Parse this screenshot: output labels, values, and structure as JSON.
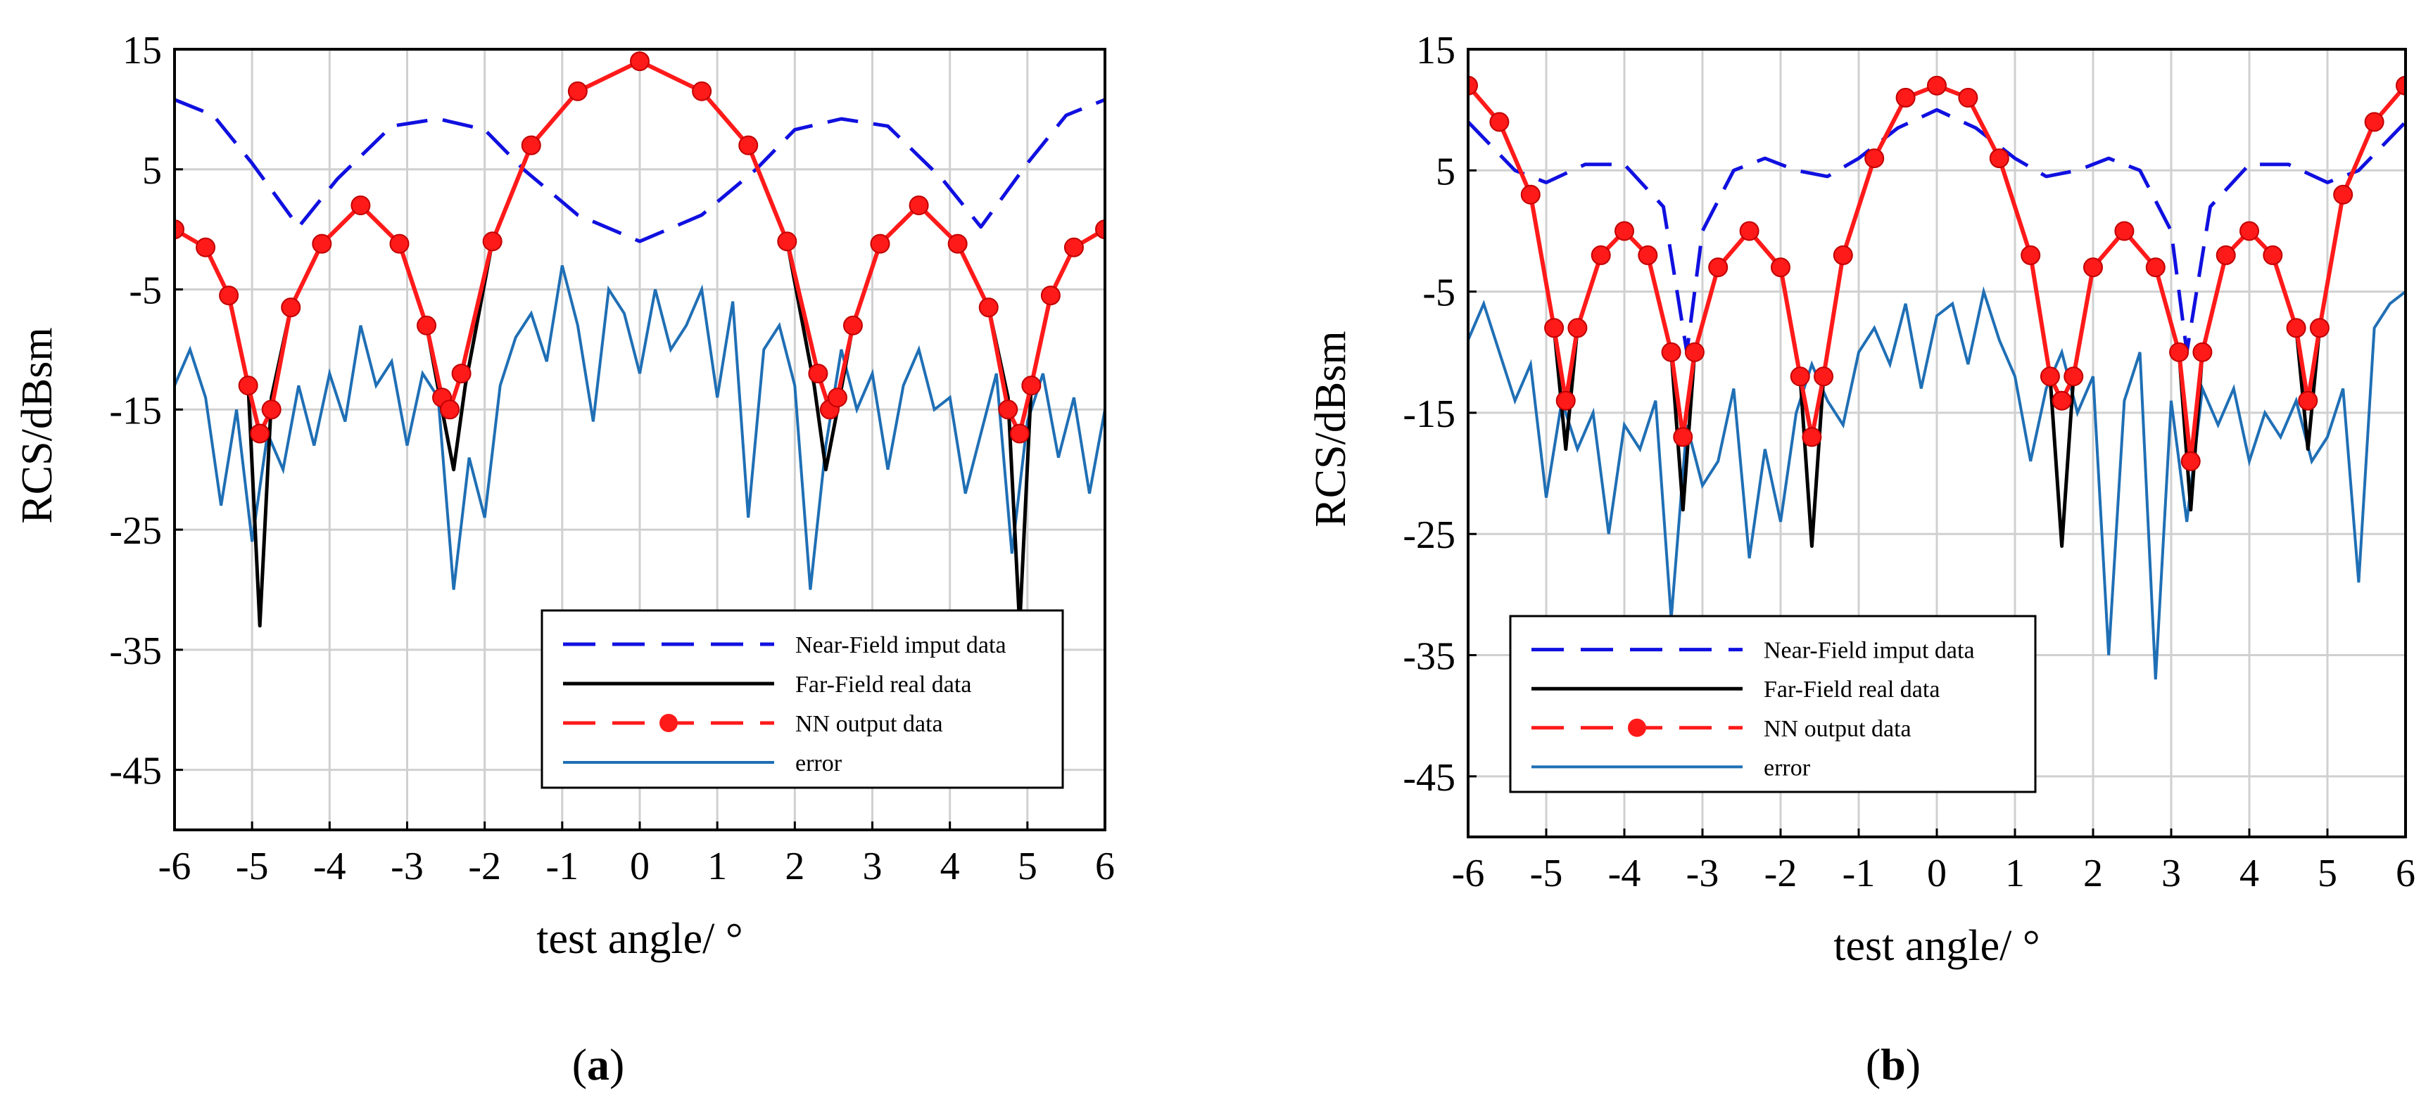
{
  "colors": {
    "near_field": "#1010e0",
    "far_field": "#000000",
    "nn_output": "#ff1a1a",
    "error": "#1f6fb5",
    "grid": "#d0d0d0"
  },
  "chart_data": [
    {
      "type": "line",
      "panel": "a",
      "caption_letter": "a",
      "xlabel": "test angle/ °",
      "ylabel": "RCS/dBsm",
      "xlim": [
        -6,
        6
      ],
      "ylim": [
        -50,
        15
      ],
      "xticks": [
        "-6",
        "-5",
        "-4",
        "-3",
        "-2",
        "-1",
        "0",
        "1",
        "2",
        "3",
        "4",
        "5",
        "6"
      ],
      "yticks": [
        "15",
        "5",
        "-5",
        "-15",
        "-25",
        "-35",
        "-45"
      ],
      "legend_position": "bottom-right",
      "legend": [
        "Near-Field imput data",
        "Far-Field real data",
        "NN output data",
        "error"
      ],
      "model": {
        "near_period": 8.8,
        "far_period": 2.45,
        "near_min": -1,
        "near_max": 9.2,
        "far_peak": 14,
        "far_side": 2,
        "far_edge": 0,
        "near_edge": 10.8
      },
      "series": [
        {
          "name": "Near-Field imput data",
          "x": [
            -6,
            -5.5,
            -5,
            -4.4,
            -3.9,
            -3.2,
            -2.6,
            -2,
            -1.5,
            -0.8,
            0,
            0.8,
            1.5,
            2,
            2.6,
            3.2,
            3.9,
            4.4,
            5,
            5.5,
            6
          ],
          "y": [
            10.8,
            9.5,
            5.5,
            0.2,
            4.2,
            8.6,
            9.2,
            8.3,
            5,
            1.2,
            -1,
            1.2,
            5,
            8.3,
            9.2,
            8.6,
            4.2,
            0.2,
            5.5,
            9.5,
            10.8
          ]
        },
        {
          "name": "Far-Field real data",
          "x": [
            -6,
            -5.6,
            -5.3,
            -5.05,
            -4.9,
            -4.75,
            -4.5,
            -4.1,
            -3.6,
            -3.1,
            -2.75,
            -2.55,
            -2.4,
            -2.25,
            -1.9,
            -1.4,
            -0.8,
            0,
            0.8,
            1.4,
            1.9,
            2.25,
            2.4,
            2.55,
            2.75,
            3.1,
            3.6,
            4.1,
            4.5,
            4.75,
            4.9,
            5.05,
            5.3,
            5.6,
            6
          ],
          "y": [
            0,
            -1.5,
            -5.5,
            -13,
            -33,
            -14,
            -6.5,
            -1.2,
            2,
            -1.2,
            -8,
            -15,
            -20,
            -13,
            -1,
            7,
            11.5,
            14,
            11.5,
            7,
            -1,
            -13,
            -20,
            -15,
            -8,
            -1.2,
            2,
            -1.2,
            -6.5,
            -14,
            -33,
            -13,
            -5.5,
            -1.5,
            0
          ]
        },
        {
          "name": "NN output data",
          "x": [
            -6,
            -5.6,
            -5.3,
            -5.05,
            -4.9,
            -4.75,
            -4.5,
            -4.1,
            -3.6,
            -3.1,
            -2.75,
            -2.55,
            -2.45,
            -2.3,
            -1.9,
            -1.4,
            -0.8,
            0,
            0.8,
            1.4,
            1.9,
            2.3,
            2.45,
            2.55,
            2.75,
            3.1,
            3.6,
            4.1,
            4.5,
            4.75,
            4.9,
            5.05,
            5.3,
            5.6,
            6
          ],
          "y": [
            0,
            -1.5,
            -5.5,
            -13,
            -17,
            -15,
            -6.5,
            -1.2,
            2,
            -1.2,
            -8,
            -14,
            -15,
            -12,
            -1,
            7,
            11.5,
            14,
            11.5,
            7,
            -1,
            -12,
            -15,
            -14,
            -8,
            -1.2,
            2,
            -1.2,
            -6.5,
            -15,
            -17,
            -13,
            -5.5,
            -1.5,
            0
          ]
        },
        {
          "name": "error",
          "x": [
            -6,
            -5.8,
            -5.6,
            -5.4,
            -5.2,
            -5,
            -4.8,
            -4.6,
            -4.4,
            -4.2,
            -4,
            -3.8,
            -3.6,
            -3.4,
            -3.2,
            -3,
            -2.8,
            -2.6,
            -2.4,
            -2.2,
            -2,
            -1.8,
            -1.6,
            -1.4,
            -1.2,
            -1,
            -0.8,
            -0.6,
            -0.4,
            -0.2,
            0,
            0.2,
            0.4,
            0.6,
            0.8,
            1,
            1.2,
            1.4,
            1.6,
            1.8,
            2,
            2.2,
            2.4,
            2.6,
            2.8,
            3,
            3.2,
            3.4,
            3.6,
            3.8,
            4,
            4.2,
            4.4,
            4.6,
            4.8,
            5,
            5.2,
            5.4,
            5.6,
            5.8,
            6
          ],
          "y": [
            -13,
            -10,
            -14,
            -23,
            -15,
            -26,
            -17,
            -20,
            -13,
            -18,
            -12,
            -16,
            -8,
            -13,
            -11,
            -18,
            -12,
            -14,
            -30,
            -19,
            -24,
            -13,
            -9,
            -7,
            -11,
            -3,
            -8,
            -16,
            -5,
            -7,
            -12,
            -5,
            -10,
            -8,
            -5,
            -14,
            -6,
            -24,
            -10,
            -8,
            -13,
            -30,
            -18,
            -10,
            -15,
            -12,
            -20,
            -13,
            -10,
            -15,
            -14,
            -22,
            -17,
            -12,
            -27,
            -16,
            -12,
            -19,
            -14,
            -22,
            -15
          ]
        }
      ]
    },
    {
      "type": "line",
      "panel": "b",
      "caption_letter": "b",
      "xlabel": "test angle/ °",
      "ylabel": "RCS/dBsm",
      "xlim": [
        -6,
        6
      ],
      "ylim": [
        -50,
        15
      ],
      "xticks": [
        "-6",
        "-5",
        "-4",
        "-3",
        "-2",
        "-1",
        "0",
        "1",
        "2",
        "3",
        "4",
        "5",
        "6"
      ],
      "yticks": [
        "15",
        "5",
        "-5",
        "-15",
        "-25",
        "-35",
        "-45"
      ],
      "legend_position": "bottom-right",
      "legend": [
        "Near-Field imput data",
        "Far-Field real data",
        "NN output data",
        "error"
      ],
      "series": [
        {
          "name": "Near-Field imput data",
          "x": [
            -6,
            -5.4,
            -5,
            -4.5,
            -4,
            -3.5,
            -3.2,
            -3,
            -2.6,
            -2.2,
            -1.8,
            -1.4,
            -1,
            -0.5,
            0,
            0.5,
            1,
            1.4,
            1.8,
            2.2,
            2.6,
            3,
            3.2,
            3.5,
            4,
            4.5,
            5,
            5.4,
            6
          ],
          "y": [
            9,
            5,
            4,
            5.5,
            5.5,
            2,
            -10,
            0,
            5,
            6,
            5,
            4.5,
            6,
            8.5,
            10,
            8.5,
            6,
            4.5,
            5,
            6,
            5,
            0,
            -10,
            2,
            5.5,
            5.5,
            4,
            5,
            9
          ]
        },
        {
          "name": "Far-Field real data",
          "x": [
            -6,
            -5.6,
            -5.2,
            -4.9,
            -4.75,
            -4.6,
            -4.3,
            -4,
            -3.7,
            -3.4,
            -3.25,
            -3.1,
            -2.8,
            -2.4,
            -2,
            -1.75,
            -1.6,
            -1.45,
            -1.2,
            -0.8,
            -0.4,
            0,
            0.4,
            0.8,
            1.2,
            1.45,
            1.6,
            1.75,
            2,
            2.4,
            2.8,
            3.1,
            3.25,
            3.4,
            3.7,
            4,
            4.3,
            4.6,
            4.75,
            4.9,
            5.2,
            5.6,
            6
          ],
          "y": [
            12,
            9,
            3,
            -8,
            -18,
            -8,
            -2,
            0,
            -2,
            -10,
            -23,
            -10,
            -3,
            0,
            -3,
            -12,
            -26,
            -12,
            -2,
            6,
            11,
            12,
            11,
            6,
            -2,
            -12,
            -26,
            -12,
            -3,
            0,
            -3,
            -10,
            -23,
            -10,
            -2,
            0,
            -2,
            -8,
            -18,
            -8,
            3,
            9,
            12
          ]
        },
        {
          "name": "NN output data",
          "x": [
            -6,
            -5.6,
            -5.2,
            -4.9,
            -4.75,
            -4.6,
            -4.3,
            -4,
            -3.7,
            -3.4,
            -3.25,
            -3.1,
            -2.8,
            -2.4,
            -2,
            -1.75,
            -1.6,
            -1.45,
            -1.2,
            -0.8,
            -0.4,
            0,
            0.4,
            0.8,
            1.2,
            1.45,
            1.6,
            1.75,
            2,
            2.4,
            2.8,
            3.1,
            3.25,
            3.4,
            3.7,
            4,
            4.3,
            4.6,
            4.75,
            4.9,
            5.2,
            5.6,
            6
          ],
          "y": [
            12,
            9,
            3,
            -8,
            -14,
            -8,
            -2,
            0,
            -2,
            -10,
            -17,
            -10,
            -3,
            0,
            -3,
            -12,
            -17,
            -12,
            -2,
            6,
            11,
            12,
            11,
            6,
            -2,
            -12,
            -14,
            -12,
            -3,
            0,
            -3,
            -10,
            -19,
            -10,
            -2,
            0,
            -2,
            -8,
            -14,
            -8,
            3,
            9,
            12
          ]
        },
        {
          "name": "error",
          "x": [
            -6,
            -5.8,
            -5.6,
            -5.4,
            -5.2,
            -5,
            -4.8,
            -4.6,
            -4.4,
            -4.2,
            -4,
            -3.8,
            -3.6,
            -3.4,
            -3.2,
            -3,
            -2.8,
            -2.6,
            -2.4,
            -2.2,
            -2,
            -1.8,
            -1.6,
            -1.4,
            -1.2,
            -1,
            -0.8,
            -0.6,
            -0.4,
            -0.2,
            0,
            0.2,
            0.4,
            0.6,
            0.8,
            1,
            1.2,
            1.4,
            1.6,
            1.8,
            2,
            2.2,
            2.4,
            2.6,
            2.8,
            3,
            3.2,
            3.4,
            3.6,
            3.8,
            4,
            4.2,
            4.4,
            4.6,
            4.8,
            5,
            5.2,
            5.4,
            5.6,
            5.8,
            6
          ],
          "y": [
            -9,
            -6,
            -10,
            -14,
            -11,
            -22,
            -14,
            -18,
            -15,
            -25,
            -16,
            -18,
            -14,
            -32,
            -16,
            -21,
            -19,
            -13,
            -27,
            -18,
            -24,
            -15,
            -11,
            -14,
            -16,
            -10,
            -8,
            -11,
            -6,
            -13,
            -7,
            -6,
            -11,
            -5,
            -9,
            -12,
            -19,
            -13,
            -10,
            -15,
            -12,
            -35,
            -14,
            -10,
            -37,
            -14,
            -24,
            -13,
            -16,
            -13,
            -19,
            -15,
            -17,
            -14,
            -19,
            -17,
            -13,
            -29,
            -8,
            -6,
            -5
          ]
        }
      ]
    }
  ]
}
